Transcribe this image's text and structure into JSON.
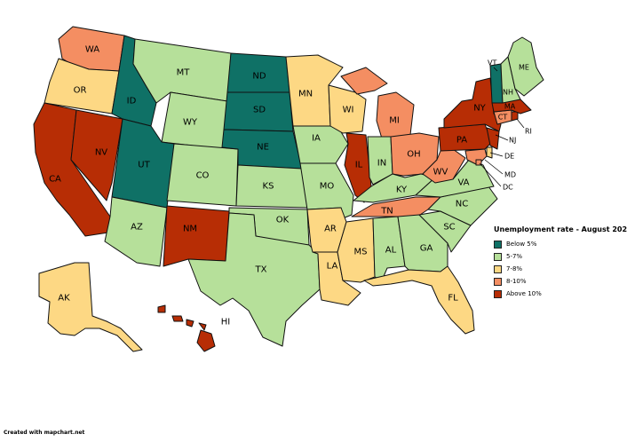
{
  "legend": {
    "title": "Unemployment rate - August 202",
    "items": [
      {
        "id": "below5",
        "label": "Below 5%",
        "color": "#0f7166"
      },
      {
        "id": "5to7",
        "label": "5-7%",
        "color": "#b6e09a"
      },
      {
        "id": "7to8",
        "label": "7-8%",
        "color": "#fdd884"
      },
      {
        "id": "8to10",
        "label": "8-10%",
        "color": "#f48e62"
      },
      {
        "id": "above10",
        "label": "Above 10%",
        "color": "#b72d05"
      }
    ]
  },
  "credit": "Created with mapchart.net",
  "states": {
    "WA": {
      "label": "WA",
      "category": "8to10"
    },
    "OR": {
      "label": "OR",
      "category": "7to8"
    },
    "CA": {
      "label": "CA",
      "category": "above10"
    },
    "NV": {
      "label": "NV",
      "category": "above10"
    },
    "ID": {
      "label": "ID",
      "category": "below5"
    },
    "MT": {
      "label": "MT",
      "category": "5to7"
    },
    "WY": {
      "label": "WY",
      "category": "5to7"
    },
    "UT": {
      "label": "UT",
      "category": "below5"
    },
    "CO": {
      "label": "CO",
      "category": "5to7"
    },
    "AZ": {
      "label": "AZ",
      "category": "5to7"
    },
    "NM": {
      "label": "NM",
      "category": "above10"
    },
    "ND": {
      "label": "ND",
      "category": "below5"
    },
    "SD": {
      "label": "SD",
      "category": "below5"
    },
    "NE": {
      "label": "NE",
      "category": "below5"
    },
    "KS": {
      "label": "KS",
      "category": "5to7"
    },
    "OK": {
      "label": "OK",
      "category": "5to7"
    },
    "TX": {
      "label": "TX",
      "category": "5to7"
    },
    "MN": {
      "label": "MN",
      "category": "7to8"
    },
    "IA": {
      "label": "IA",
      "category": "5to7"
    },
    "MO": {
      "label": "MO",
      "category": "5to7"
    },
    "AR": {
      "label": "AR",
      "category": "7to8"
    },
    "LA": {
      "label": "LA",
      "category": "7to8"
    },
    "WI": {
      "label": "WI",
      "category": "7to8"
    },
    "IL": {
      "label": "IL",
      "category": "above10"
    },
    "MI": {
      "label": "MI",
      "category": "8to10"
    },
    "IN": {
      "label": "IN",
      "category": "5to7"
    },
    "OH": {
      "label": "OH",
      "category": "8to10"
    },
    "KY": {
      "label": "KY",
      "category": "5to7"
    },
    "TN": {
      "label": "TN",
      "category": "8to10"
    },
    "MS": {
      "label": "MS",
      "category": "7to8"
    },
    "AL": {
      "label": "AL",
      "category": "5to7"
    },
    "GA": {
      "label": "GA",
      "category": "5to7"
    },
    "FL": {
      "label": "FL",
      "category": "7to8"
    },
    "SC": {
      "label": "SC",
      "category": "5to7"
    },
    "NC": {
      "label": "NC",
      "category": "5to7"
    },
    "VA": {
      "label": "VA",
      "category": "5to7"
    },
    "WV": {
      "label": "WV",
      "category": "8to10"
    },
    "PA": {
      "label": "PA",
      "category": "above10"
    },
    "NY": {
      "label": "NY",
      "category": "above10"
    },
    "NJ": {
      "label": "NJ",
      "category": "above10"
    },
    "DE": {
      "label": "DE",
      "category": "7to8"
    },
    "MD": {
      "label": "MD",
      "category": "8to10"
    },
    "DC": {
      "label": "DC",
      "category": "8to10"
    },
    "CT": {
      "label": "CT",
      "category": "8to10"
    },
    "RI": {
      "label": "RI",
      "category": "above10"
    },
    "MA": {
      "label": "MA",
      "category": "above10"
    },
    "VT": {
      "label": "VT",
      "category": "below5"
    },
    "NH": {
      "label": "NH",
      "category": "5to7"
    },
    "ME": {
      "label": "ME",
      "category": "5to7"
    },
    "AK": {
      "label": "AK",
      "category": "7to8"
    },
    "HI": {
      "label": "HI",
      "category": "above10"
    }
  }
}
